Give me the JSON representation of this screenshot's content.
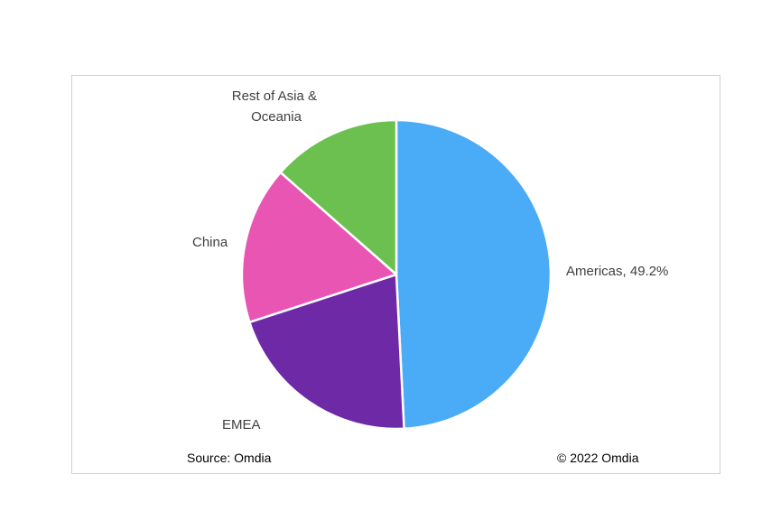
{
  "chart_data": {
    "type": "pie",
    "slices": [
      {
        "label": "Americas, 49.2%",
        "value": 49.2,
        "color": "#4aabf7"
      },
      {
        "label": "EMEA",
        "value": 20.8,
        "color": "#6e2aa6"
      },
      {
        "label": "China",
        "value": 16.5,
        "color": "#e955b2"
      },
      {
        "label": "Rest of Asia & Oceania",
        "value": 13.5,
        "color": "#6bc04f"
      }
    ],
    "start_angle": "12 o'clock",
    "direction": "clockwise"
  },
  "footer": {
    "source": "Source: Omdia",
    "copyright": "© 2022 Omdia"
  }
}
